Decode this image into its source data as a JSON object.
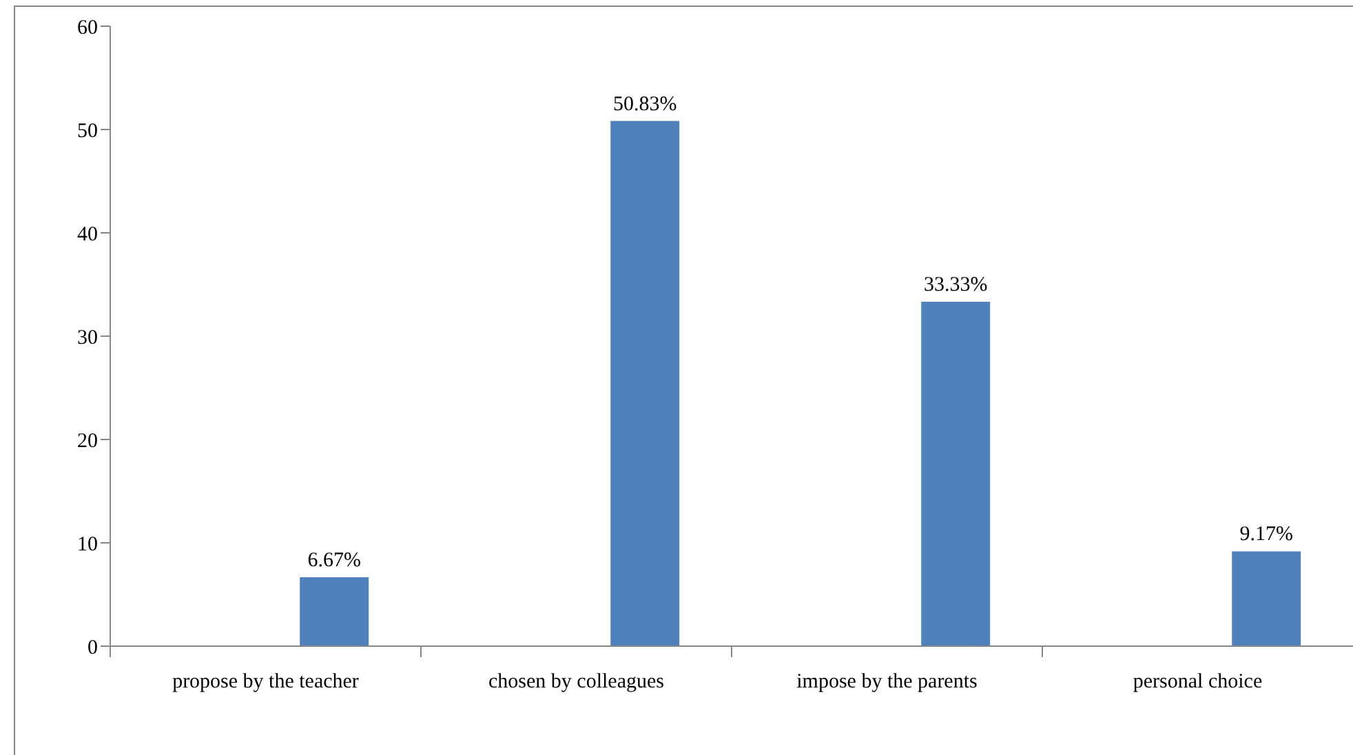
{
  "chart_data": {
    "type": "bar",
    "categories": [
      "propose by the teacher",
      "chosen by colleagues",
      "impose by the parents",
      "personal choice"
    ],
    "values": [
      6.67,
      50.83,
      33.33,
      9.17
    ],
    "value_labels": [
      "6.67%",
      "50.83%",
      "33.33%",
      "9.17%"
    ],
    "color": "#4f81bd",
    "ylim": [
      0,
      60
    ],
    "yticks": [
      0,
      10,
      20,
      30,
      40,
      50,
      60
    ]
  }
}
